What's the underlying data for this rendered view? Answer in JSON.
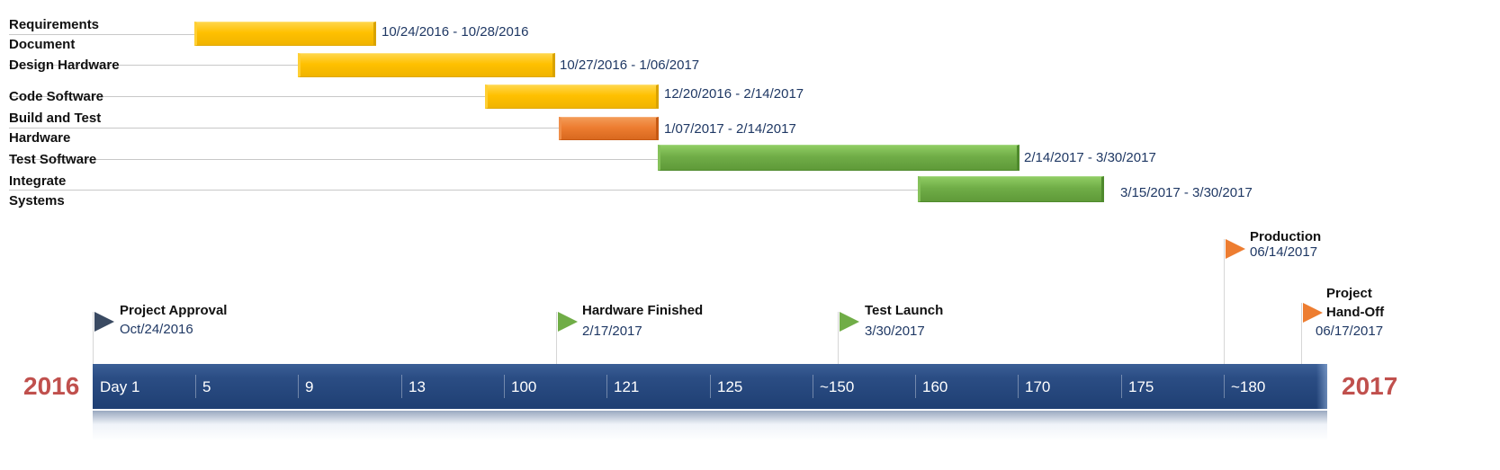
{
  "tasks": [
    {
      "label": "Requirements Document",
      "dates": "10/24/2016 - 10/28/2016",
      "color": "yellow"
    },
    {
      "label": "Design Hardware",
      "dates": "10/27/2016 - 1/06/2017",
      "color": "yellow"
    },
    {
      "label": "Code Software",
      "dates": "12/20/2016 - 2/14/2017",
      "color": "yellow"
    },
    {
      "label": "Build and Test Hardware",
      "dates": "1/07/2017 - 2/14/2017",
      "color": "orange"
    },
    {
      "label": "Test Software",
      "dates": "2/14/2017 - 3/30/2017",
      "color": "green"
    },
    {
      "label": "Integrate Systems",
      "dates": "3/15/2017 - 3/30/2017",
      "color": "green"
    }
  ],
  "milestones": [
    {
      "title": "Project Approval",
      "date": "Oct/24/2016",
      "flag_color": "#3a4a62"
    },
    {
      "title": "Hardware Finished",
      "date": "2/17/2017",
      "flag_color": "#70ad47"
    },
    {
      "title": "Test Launch",
      "date": "3/30/2017",
      "flag_color": "#70ad47"
    },
    {
      "title": "Production",
      "date": "06/14/2017",
      "flag_color": "#ed7d31"
    },
    {
      "title": "Project Hand-Off",
      "date": "06/17/2017",
      "flag_color": "#ed7d31"
    }
  ],
  "timeline": {
    "start_year": "2016",
    "end_year": "2017",
    "ticks": [
      "Day 1",
      "5",
      "9",
      "13",
      "100",
      "121",
      "125",
      "~150",
      "160",
      "170",
      "175",
      "~180"
    ]
  },
  "colors": {
    "bar_yellow": "#ffc000",
    "bar_orange": "#ed7d31",
    "bar_green": "#70ad47",
    "timeline_band": "#1f3f73",
    "year_text": "#c0504d",
    "date_text": "#1f3864"
  }
}
